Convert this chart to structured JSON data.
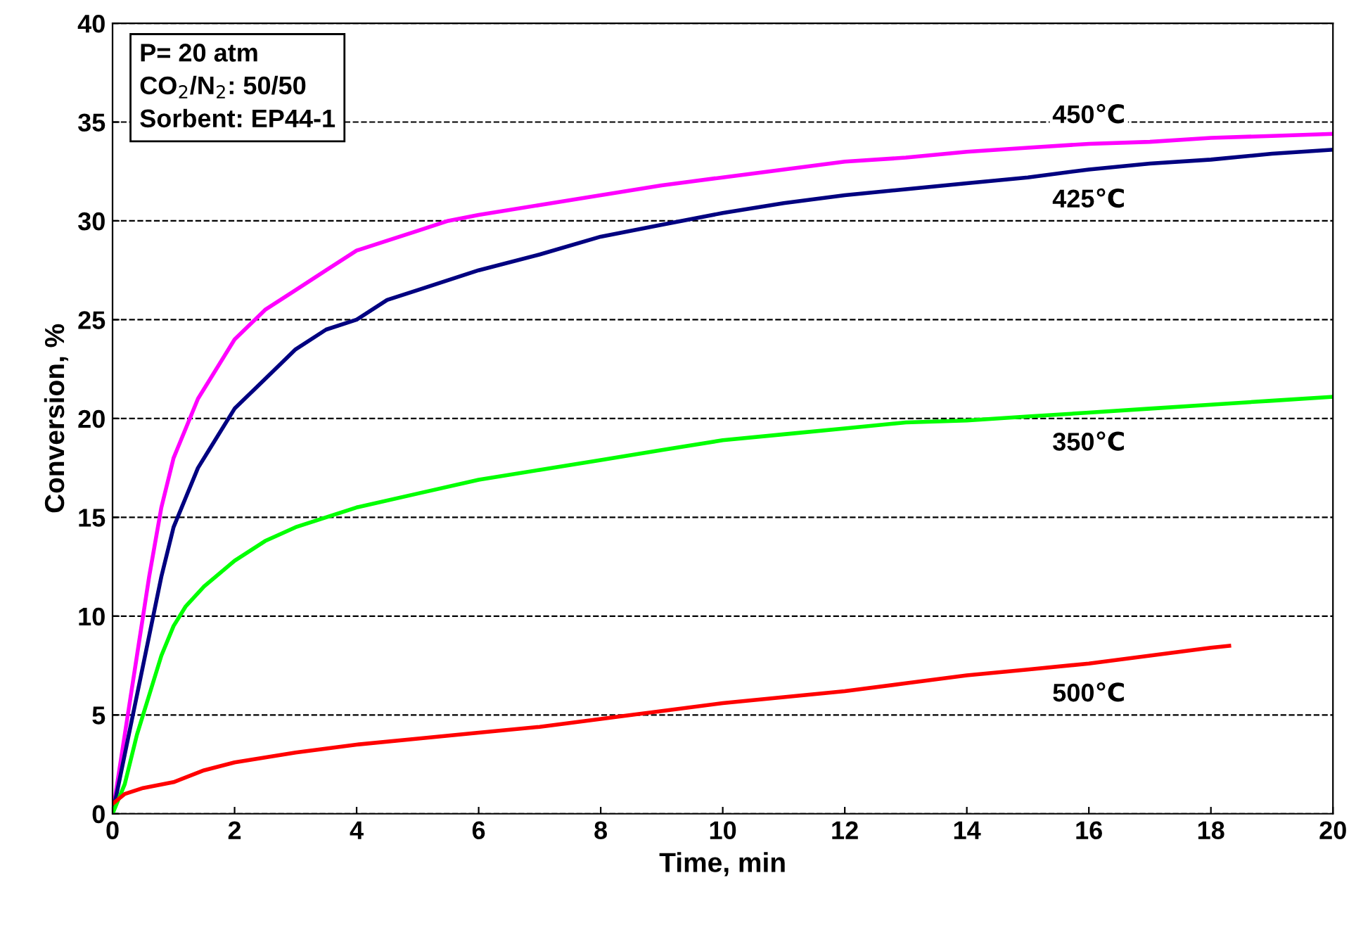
{
  "chart_data": {
    "type": "line",
    "xlabel": "Time, min",
    "ylabel": "Conversion, %",
    "xlim": [
      0,
      20
    ],
    "ylim": [
      0,
      40
    ],
    "xticks": [
      0,
      2,
      4,
      6,
      8,
      10,
      12,
      14,
      16,
      18,
      20
    ],
    "yticks": [
      0,
      5,
      10,
      15,
      20,
      25,
      30,
      35,
      40
    ],
    "grid": "y",
    "marker": "none",
    "line_style": "solid",
    "series": [
      {
        "name": "450℃",
        "color": "#ff00ff",
        "x": [
          0,
          0.2,
          0.4,
          0.6,
          0.8,
          1,
          1.2,
          1.4,
          1.6,
          2,
          2.5,
          3,
          3.5,
          4,
          4.5,
          5,
          5.5,
          6,
          7,
          8,
          9,
          10,
          11,
          12,
          13,
          14,
          15,
          16,
          17,
          18,
          19,
          20
        ],
        "values": [
          0,
          4,
          8,
          12,
          15.5,
          18,
          19.5,
          21,
          22,
          24,
          25.5,
          26.5,
          27.5,
          28.5,
          29,
          29.5,
          30,
          30.3,
          30.8,
          31.3,
          31.8,
          32.2,
          32.6,
          33,
          33.2,
          33.5,
          33.7,
          33.9,
          34,
          34.2,
          34.3,
          34.4
        ]
      },
      {
        "name": "425℃",
        "color": "#000080",
        "x": [
          0,
          0.2,
          0.4,
          0.6,
          0.8,
          1,
          1.2,
          1.4,
          1.6,
          2,
          2.5,
          3,
          3.5,
          4,
          4.5,
          5,
          6,
          7,
          8,
          9,
          10,
          11,
          12,
          13,
          14,
          15,
          16,
          17,
          18,
          19,
          20
        ],
        "values": [
          0,
          3,
          6,
          9,
          12,
          14.5,
          16,
          17.5,
          18.5,
          20.5,
          22,
          23.5,
          24.5,
          25,
          26,
          26.5,
          27.5,
          28.3,
          29.2,
          29.8,
          30.4,
          30.9,
          31.3,
          31.6,
          31.9,
          32.2,
          32.6,
          32.9,
          33.1,
          33.4,
          33.6
        ]
      },
      {
        "name": "350℃",
        "color": "#00ff00",
        "x": [
          0,
          0.2,
          0.4,
          0.6,
          0.8,
          1,
          1.2,
          1.5,
          2,
          2.5,
          3,
          3.5,
          4,
          5,
          6,
          7,
          8,
          9,
          10,
          11,
          12,
          13,
          14,
          15,
          16,
          17,
          18,
          19,
          20
        ],
        "values": [
          0,
          1.5,
          4,
          6,
          8,
          9.5,
          10.5,
          11.5,
          12.8,
          13.8,
          14.5,
          15,
          15.5,
          16.2,
          16.9,
          17.4,
          17.9,
          18.4,
          18.9,
          19.2,
          19.5,
          19.8,
          19.9,
          20.1,
          20.3,
          20.5,
          20.7,
          20.9,
          21.1
        ]
      },
      {
        "name": "500℃",
        "color": "#ff0000",
        "x": [
          0,
          0.2,
          0.5,
          1,
          1.5,
          2,
          3,
          4,
          5,
          6,
          7,
          8,
          9,
          10,
          11,
          12,
          13,
          14,
          15,
          16,
          17,
          18,
          18.3
        ],
        "values": [
          0.5,
          1,
          1.3,
          1.6,
          2.2,
          2.6,
          3.1,
          3.5,
          3.8,
          4.1,
          4.4,
          4.8,
          5.2,
          5.6,
          5.9,
          6.2,
          6.6,
          7,
          7.3,
          7.6,
          8,
          8.4,
          8.5
        ]
      }
    ],
    "annotations": [
      "P= 20 atm\nCO$_{2}$/N$_{2}$: 50/50\nSorbent: EP44-1"
    ]
  }
}
